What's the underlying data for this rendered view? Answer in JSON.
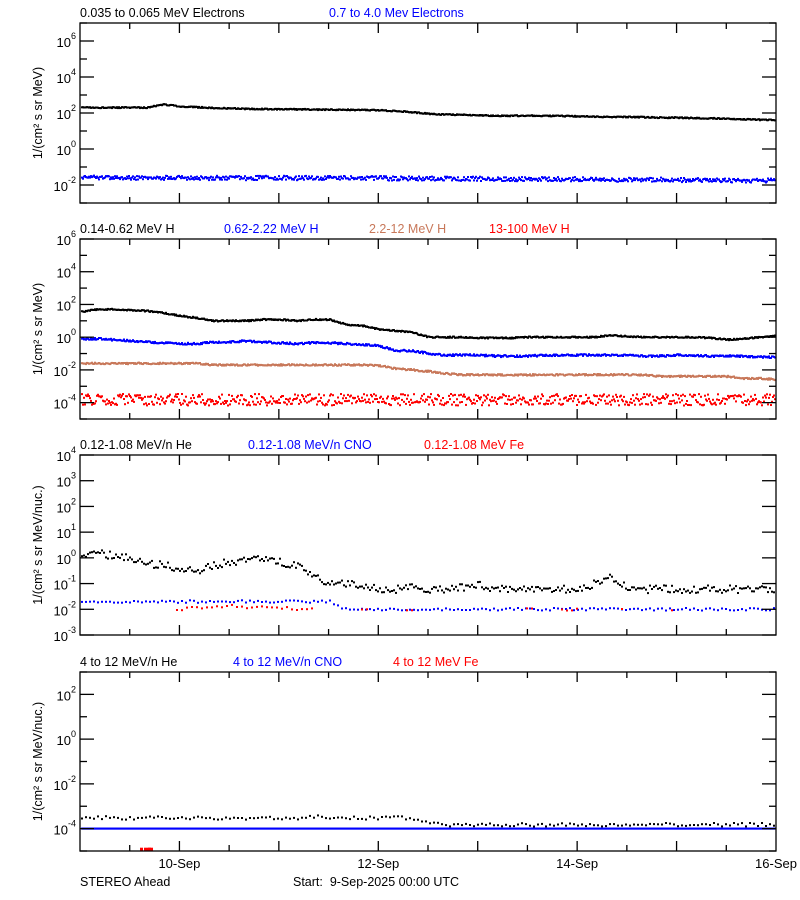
{
  "chart_data": [
    {
      "type": "scatter",
      "title_segments": [
        {
          "text": "0.035 to 0.065 MeV Electrons",
          "color": "#000000"
        },
        {
          "text": "0.7 to 4.0 Mev Electrons",
          "color": "#0000ff"
        }
      ],
      "ylabel": "1/(cm² s sr MeV)",
      "yscale": "log",
      "ylim": [
        0.001,
        10000000
      ],
      "ytick_exponents": [
        -2,
        0,
        2,
        4,
        6
      ],
      "series": [
        {
          "name": "0.035 to 0.065 MeV Electrons",
          "color": "#000000",
          "values": [
            200,
            200,
            200,
            200,
            200,
            300,
            230,
            210,
            190,
            180,
            170,
            165,
            160,
            160,
            155,
            155,
            150,
            150,
            140,
            130,
            110,
            90,
            80,
            80,
            75,
            70,
            70,
            72,
            70,
            68,
            65,
            62,
            60,
            60,
            58,
            55,
            55,
            52,
            50,
            48,
            45,
            42,
            40
          ]
        },
        {
          "name": "0.7 to 4.0 Mev Electrons",
          "color": "#0000ff",
          "values": [
            0.025,
            0.026,
            0.025,
            0.025,
            0.024,
            0.025,
            0.025,
            0.024,
            0.025,
            0.025,
            0.024,
            0.025,
            0.025,
            0.024,
            0.025,
            0.025,
            0.024,
            0.024,
            0.024,
            0.023,
            0.023,
            0.023,
            0.022,
            0.022,
            0.022,
            0.022,
            0.021,
            0.022,
            0.021,
            0.021,
            0.021,
            0.02,
            0.02,
            0.02,
            0.02,
            0.02,
            0.019,
            0.019,
            0.019,
            0.018,
            0.018,
            0.018,
            0.017
          ]
        }
      ]
    },
    {
      "type": "scatter",
      "title_segments": [
        {
          "text": "0.14-0.62 MeV H",
          "color": "#000000"
        },
        {
          "text": "0.62-2.22 MeV H",
          "color": "#0000ff"
        },
        {
          "text": "2.2-12 MeV H",
          "color": "#c8785a"
        },
        {
          "text": "13-100 MeV H",
          "color": "#ff0000"
        }
      ],
      "ylabel": "1/(cm² s sr MeV)",
      "yscale": "log",
      "ylim": [
        1e-05,
        1000000
      ],
      "ytick_exponents": [
        -4,
        -2,
        0,
        2,
        4,
        6
      ],
      "series": [
        {
          "name": "0.14-0.62 MeV H",
          "color": "#000000",
          "values": [
            35,
            50,
            50,
            45,
            40,
            30,
            20,
            15,
            10,
            10,
            10,
            12,
            12,
            10,
            12,
            12,
            6,
            5,
            3,
            2.5,
            2,
            1,
            1,
            1,
            0.9,
            0.9,
            0.9,
            1,
            1,
            1,
            1,
            1,
            1.3,
            1.1,
            1,
            1,
            1,
            1,
            0.9,
            0.7,
            0.8,
            1,
            1.2
          ]
        },
        {
          "name": "0.62-2.22 MeV H",
          "color": "#0000ff",
          "values": [
            0.8,
            0.8,
            0.7,
            0.6,
            0.5,
            0.45,
            0.4,
            0.4,
            0.5,
            0.5,
            0.6,
            0.5,
            0.45,
            0.4,
            0.45,
            0.45,
            0.4,
            0.35,
            0.3,
            0.15,
            0.15,
            0.1,
            0.08,
            0.08,
            0.08,
            0.07,
            0.07,
            0.07,
            0.08,
            0.08,
            0.08,
            0.08,
            0.08,
            0.08,
            0.07,
            0.07,
            0.08,
            0.08,
            0.07,
            0.07,
            0.07,
            0.06,
            0.06
          ]
        },
        {
          "name": "2.2-12 MeV H",
          "color": "#c8785a",
          "values": [
            0.025,
            0.025,
            0.025,
            0.025,
            0.025,
            0.025,
            0.025,
            0.025,
            0.02,
            0.02,
            0.02,
            0.02,
            0.02,
            0.02,
            0.02,
            0.02,
            0.02,
            0.02,
            0.018,
            0.012,
            0.01,
            0.008,
            0.006,
            0.005,
            0.005,
            0.005,
            0.005,
            0.005,
            0.005,
            0.005,
            0.005,
            0.005,
            0.005,
            0.005,
            0.005,
            0.004,
            0.004,
            0.004,
            0.004,
            0.004,
            0.003,
            0.003,
            0.0025
          ]
        },
        {
          "name": "13-100 MeV H",
          "color": "#ff0000",
          "values": [
            0.00015,
            0.00015,
            0.00015,
            0.00015,
            0.00015,
            0.00015,
            0.00015,
            0.00015,
            0.00015,
            0.00015,
            0.00015,
            0.00015,
            0.00015,
            0.00015,
            0.00015,
            0.00015,
            0.00015,
            0.00015,
            0.00015,
            0.00015,
            0.00015,
            0.00015,
            0.00015,
            0.00015,
            0.00015,
            0.00015,
            0.00015,
            0.00015,
            0.00015,
            0.00015,
            0.00015,
            0.00015,
            0.00015,
            0.00015,
            0.00015,
            0.00015,
            0.00015,
            0.00015,
            0.00015,
            0.00015,
            0.00015,
            0.00015,
            0.00015
          ]
        }
      ]
    },
    {
      "type": "scatter",
      "title_segments": [
        {
          "text": "0.12-1.08 MeV/n He",
          "color": "#000000"
        },
        {
          "text": "0.12-1.08 MeV/n CNO",
          "color": "#0000ff"
        },
        {
          "text": "0.12-1.08 MeV Fe",
          "color": "#ff0000"
        }
      ],
      "ylabel": "1/(cm² s sr MeV/nuc.)",
      "yscale": "log",
      "ylim": [
        0.001,
        10000
      ],
      "ytick_exponents": [
        -3,
        -2,
        -1,
        0,
        1,
        2,
        3,
        4
      ],
      "series": [
        {
          "name": "0.12-1.08 MeV/n He",
          "color": "#000000",
          "values": [
            0.9,
            1.5,
            1.2,
            1.0,
            0.6,
            0.5,
            0.4,
            0.3,
            0.5,
            0.7,
            0.8,
            0.9,
            0.7,
            0.5,
            0.2,
            0.1,
            0.1,
            0.08,
            0.06,
            0.06,
            0.07,
            0.06,
            0.06,
            0.07,
            0.1,
            0.06,
            0.06,
            0.06,
            0.06,
            0.06,
            0.06,
            0.1,
            0.2,
            0.07,
            0.06,
            0.06,
            0.06,
            0.06,
            0.06,
            0.06,
            0.06,
            0.06,
            0.06
          ]
        },
        {
          "name": "0.12-1.08 MeV/n CNO",
          "color": "#0000ff",
          "values": [
            0.02,
            0.02,
            0.02,
            0.02,
            0.02,
            0.02,
            0.02,
            0.02,
            0.02,
            0.02,
            0.02,
            0.02,
            0.02,
            0.02,
            0.02,
            0.02,
            0.01,
            0.01,
            0.01,
            0.01,
            0.01,
            0.01,
            0.01,
            0.01,
            0.01,
            0.01,
            0.01,
            0.01,
            0.01,
            0.01,
            0.01,
            0.01,
            0.01,
            0.01,
            0.01,
            0.01,
            0.01,
            0.01,
            0.01,
            0.01,
            0.01,
            0.01,
            0.01
          ]
        },
        {
          "name": "0.12-1.08 MeV Fe",
          "color": "#ff0000",
          "values": [
            null,
            null,
            null,
            null,
            null,
            null,
            0.01,
            0.012,
            0.012,
            0.015,
            0.012,
            0.012,
            0.012,
            0.01,
            0.01,
            null,
            null,
            0.01,
            null,
            null,
            0.01,
            null,
            0.01,
            null,
            null,
            0.01,
            null,
            0.01,
            null,
            0.01,
            0.01,
            null,
            null,
            0.01,
            null,
            null,
            0.01,
            null,
            null,
            null,
            null,
            null,
            null
          ]
        }
      ]
    },
    {
      "type": "scatter",
      "title_segments": [
        {
          "text": "4 to 12 MeV/n He",
          "color": "#000000"
        },
        {
          "text": "4 to 12 MeV/n CNO",
          "color": "#0000ff"
        },
        {
          "text": "4 to 12 MeV Fe",
          "color": "#ff0000"
        }
      ],
      "ylabel": "1/(cm² s sr MeV/nuc.)",
      "yscale": "log",
      "ylim": [
        1e-05,
        1000
      ],
      "ytick_exponents": [
        -4,
        -2,
        0,
        2
      ],
      "series": [
        {
          "name": "4 to 12 MeV/n He",
          "color": "#000000",
          "values": [
            0.0003,
            0.0003,
            0.0003,
            0.0003,
            0.0003,
            0.0003,
            0.0003,
            0.0003,
            0.0003,
            0.0003,
            0.0003,
            0.0003,
            0.0003,
            0.0003,
            0.00035,
            0.0003,
            0.0003,
            0.0003,
            0.0003,
            0.0003,
            0.0003,
            0.0002,
            0.00015,
            0.00015,
            0.00015,
            0.00015,
            0.00015,
            0.00015,
            0.00015,
            0.00015,
            0.00015,
            0.00015,
            0.00015,
            0.00015,
            0.00015,
            0.00015,
            0.00015,
            0.00015,
            0.00015,
            0.00015,
            0.00015,
            0.00015,
            0.00015
          ]
        },
        {
          "name": "4 to 12 MeV/n CNO",
          "color": "#0000ff",
          "values": [
            0.0001,
            0.0001,
            0.0001,
            0.0001,
            0.0001,
            0.0001,
            0.0001,
            0.0001,
            0.0001,
            0.0001,
            0.0001,
            0.0001,
            0.0001,
            0.0001,
            0.0001,
            0.0001,
            0.0001,
            0.0001,
            0.0001,
            0.0001,
            0.0001,
            0.0001,
            0.0001,
            0.0001,
            0.0001,
            0.0001,
            0.0001,
            0.0001,
            0.0001,
            0.0001,
            0.0001,
            0.0001,
            0.0001,
            0.0001,
            0.0001,
            0.0001,
            0.0001,
            0.0001,
            0.0001,
            0.0001,
            0.0001,
            0.0001,
            0.0001
          ]
        },
        {
          "name": "4 to 12 MeV Fe",
          "color": "#ff0000",
          "values": [
            null,
            null,
            null,
            null,
            1.2e-05,
            null,
            null,
            null,
            null,
            null,
            null,
            null,
            null,
            null,
            null,
            null,
            null,
            null,
            null,
            null,
            null,
            null,
            null,
            null,
            null,
            null,
            null,
            null,
            null,
            null,
            null,
            null,
            null,
            null,
            null,
            null,
            null,
            null,
            null,
            null,
            null,
            null,
            null
          ]
        }
      ]
    }
  ],
  "x": [
    "2025-09-09T00:00",
    "2025-09-09T04:00",
    "2025-09-09T08:00",
    "2025-09-09T12:00",
    "2025-09-09T16:00",
    "2025-09-09T20:00",
    "2025-09-10T00:00",
    "2025-09-10T04:00",
    "2025-09-10T08:00",
    "2025-09-10T12:00",
    "2025-09-10T16:00",
    "2025-09-10T20:00",
    "2025-09-11T00:00",
    "2025-09-11T04:00",
    "2025-09-11T08:00",
    "2025-09-11T12:00",
    "2025-09-11T16:00",
    "2025-09-11T20:00",
    "2025-09-12T00:00",
    "2025-09-12T04:00",
    "2025-09-12T08:00",
    "2025-09-12T12:00",
    "2025-09-12T16:00",
    "2025-09-12T20:00",
    "2025-09-13T00:00",
    "2025-09-13T04:00",
    "2025-09-13T08:00",
    "2025-09-13T12:00",
    "2025-09-13T16:00",
    "2025-09-13T20:00",
    "2025-09-14T00:00",
    "2025-09-14T04:00",
    "2025-09-14T08:00",
    "2025-09-14T12:00",
    "2025-09-14T16:00",
    "2025-09-14T20:00",
    "2025-09-15T00:00",
    "2025-09-15T04:00",
    "2025-09-15T08:00",
    "2025-09-15T12:00",
    "2025-09-15T16:00",
    "2025-09-15T20:00",
    "2025-09-16T00:00"
  ],
  "xaxis": {
    "range": [
      "2025-09-09T00:00",
      "2025-09-16T00:00"
    ],
    "tick_labels": [
      "10-Sep",
      "12-Sep",
      "14-Sep",
      "16-Sep"
    ]
  },
  "footer": {
    "spacecraft": "STEREO Ahead",
    "start_label": "Start:  9-Sep-2025 00:00 UTC"
  }
}
